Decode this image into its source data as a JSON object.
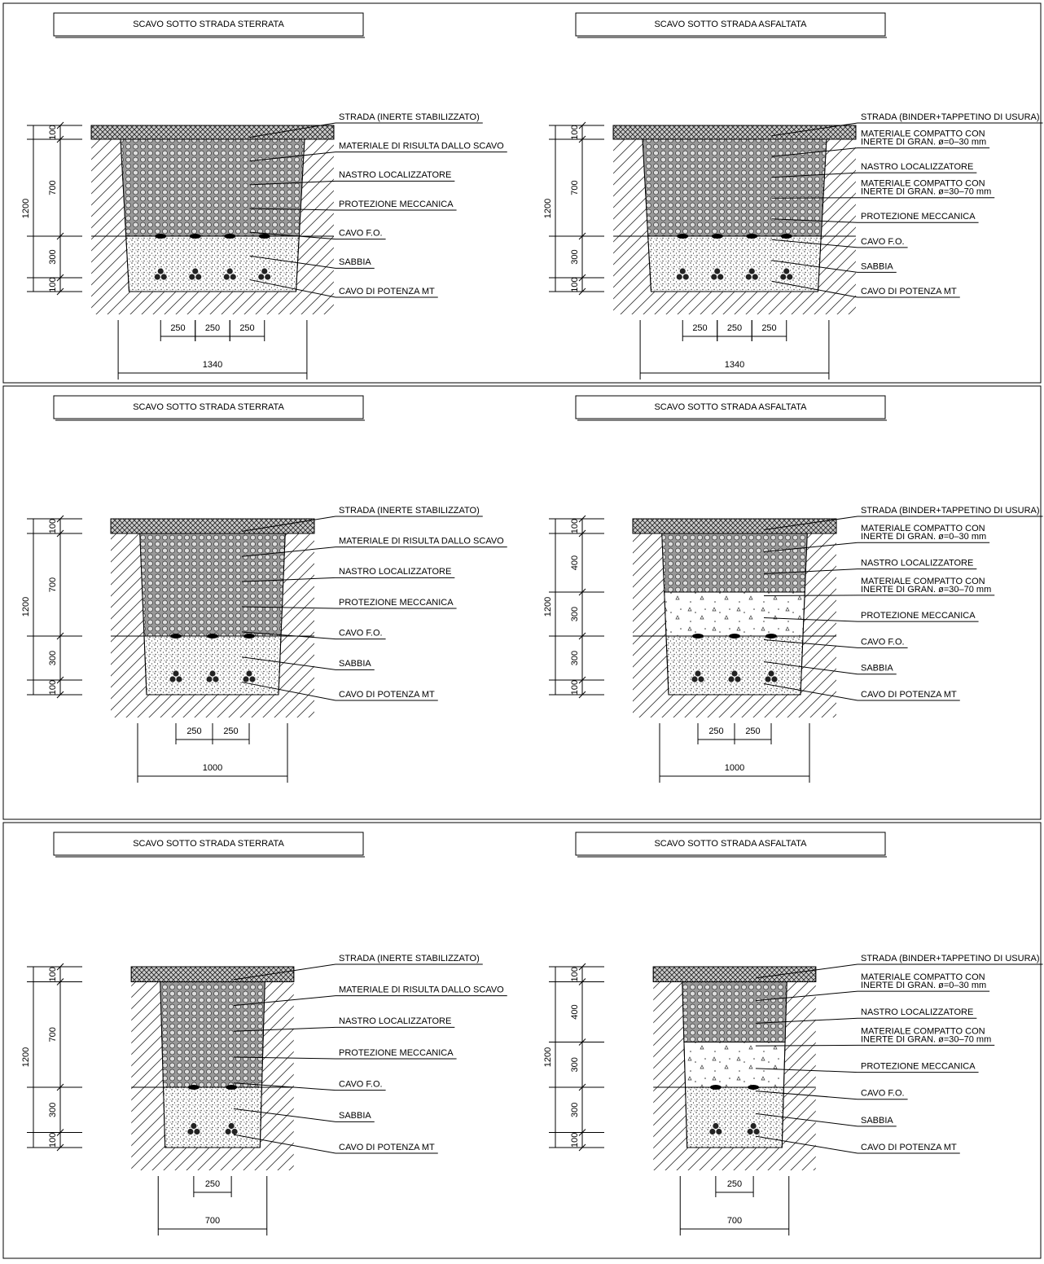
{
  "rows": [
    {
      "drawings": [
        {
          "title": "SCAVO SOTTO STRADA STERRATA",
          "labels": [
            [
              "STRADA (INERTE STABILIZZATO)"
            ],
            [
              "MATERIALE DI RISULTA DALLO SCAVO"
            ],
            [
              "NASTRO LOCALIZZATORE"
            ],
            [
              "PROTEZIONE MECCANICA"
            ],
            [
              "CAVO F.O."
            ],
            [
              "SABBIA"
            ],
            [
              "CAVO DI POTENZA MT"
            ]
          ],
          "vdims": [
            100,
            700,
            300,
            100
          ],
          "total": 1200,
          "hdims": [
            250,
            250,
            250
          ],
          "width": 1340
        },
        {
          "title": "SCAVO SOTTO STRADA ASFALTATA",
          "labels": [
            [
              "STRADA (BINDER+TAPPETINO DI USURA)"
            ],
            [
              "MATERIALE COMPATTO CON",
              "INERTE DI GRAN. ø=0–30 mm"
            ],
            [
              "NASTRO LOCALIZZATORE"
            ],
            [
              "MATERIALE COMPATTO CON",
              "INERTE DI GRAN. ø=30–70 mm"
            ],
            [
              "PROTEZIONE MECCANICA"
            ],
            [
              "CAVO F.O."
            ],
            [
              "SABBIA"
            ],
            [
              "CAVO DI POTENZA MT"
            ]
          ],
          "vdims": [
            100,
            700,
            300,
            100
          ],
          "total": 1200,
          "hdims": [
            250,
            250,
            250
          ],
          "width": 1340
        }
      ]
    },
    {
      "drawings": [
        {
          "title": "SCAVO SOTTO STRADA STERRATA",
          "labels": [
            [
              "STRADA (INERTE STABILIZZATO)"
            ],
            [
              "MATERIALE DI RISULTA DALLO SCAVO"
            ],
            [
              "NASTRO LOCALIZZATORE"
            ],
            [
              "PROTEZIONE MECCANICA"
            ],
            [
              "CAVO F.O."
            ],
            [
              "SABBIA"
            ],
            [
              "CAVO DI POTENZA MT"
            ]
          ],
          "vdims": [
            100,
            700,
            300,
            100
          ],
          "total": 1200,
          "hdims": [
            250,
            250
          ],
          "width": 1000
        },
        {
          "title": "SCAVO SOTTO STRADA ASFALTATA",
          "labels": [
            [
              "STRADA (BINDER+TAPPETINO DI USURA)"
            ],
            [
              "MATERIALE COMPATTO CON",
              "INERTE DI GRAN. ø=0–30 mm"
            ],
            [
              "NASTRO LOCALIZZATORE"
            ],
            [
              "MATERIALE COMPATTO CON",
              "INERTE DI GRAN. ø=30–70 mm"
            ],
            [
              "PROTEZIONE MECCANICA"
            ],
            [
              "CAVO F.O."
            ],
            [
              "SABBIA"
            ],
            [
              "CAVO DI POTENZA MT"
            ]
          ],
          "vdims": [
            100,
            400,
            300,
            300,
            100
          ],
          "total": 1200,
          "hdims": [
            250,
            250
          ],
          "width": 1000
        }
      ]
    },
    {
      "drawings": [
        {
          "title": "SCAVO SOTTO STRADA STERRATA",
          "labels": [
            [
              "STRADA (INERTE STABILIZZATO)"
            ],
            [
              "MATERIALE DI RISULTA DALLO SCAVO"
            ],
            [
              "NASTRO LOCALIZZATORE"
            ],
            [
              "PROTEZIONE MECCANICA"
            ],
            [
              "CAVO F.O."
            ],
            [
              "SABBIA"
            ],
            [
              "CAVO DI POTENZA MT"
            ]
          ],
          "vdims": [
            100,
            700,
            300,
            100
          ],
          "total": 1200,
          "hdims": [
            250
          ],
          "width": 700
        },
        {
          "title": "SCAVO SOTTO STRADA ASFALTATA",
          "labels": [
            [
              "STRADA (BINDER+TAPPETINO DI USURA)"
            ],
            [
              "MATERIALE COMPATTO CON",
              "INERTE DI GRAN. ø=0–30 mm"
            ],
            [
              "NASTRO LOCALIZZATORE"
            ],
            [
              "MATERIALE COMPATTO CON",
              "INERTE DI GRAN. ø=30–70 mm"
            ],
            [
              "PROTEZIONE MECCANICA"
            ],
            [
              "CAVO F.O."
            ],
            [
              "SABBIA"
            ],
            [
              "CAVO DI POTENZA MT"
            ]
          ],
          "vdims": [
            100,
            400,
            300,
            300,
            100
          ],
          "total": 1200,
          "hdims": [
            250
          ],
          "width": 700
        }
      ]
    }
  ]
}
